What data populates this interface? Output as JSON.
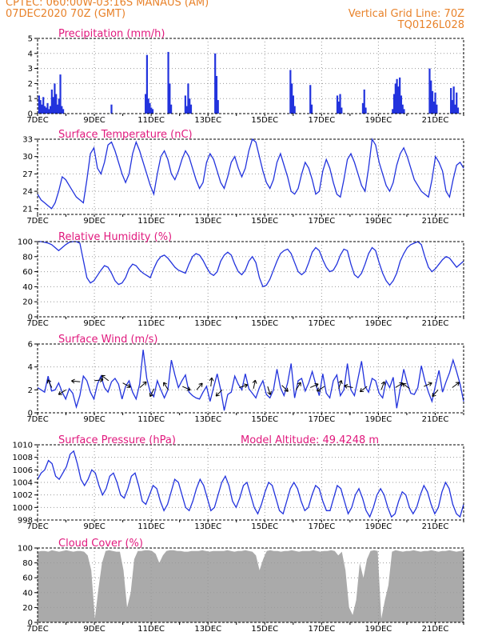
{
  "header": {
    "line1_left": "CPTEC:    060:00W-03:16S   MANAUS (AM)",
    "line2_left": "07DEC2020 70Z (GMT)",
    "line1_right": "Vertical Grid Line: 70Z",
    "line2_right": "TQ0126L028"
  },
  "colors": {
    "header": "#e8822a",
    "title": "#e0197d",
    "series": "#2233dd",
    "cloud": "#aaaaaa",
    "grid": "#999999"
  },
  "x_axis": {
    "labels": [
      "7DEC",
      "9DEC",
      "11DEC",
      "13DEC",
      "15DEC",
      "17DEC",
      "19DEC",
      "21DEC"
    ],
    "start_day": 7,
    "end_day": 22
  },
  "chart_data": [
    {
      "type": "bar",
      "title": "Precipitation (mm/h)",
      "ylim": [
        0,
        5
      ],
      "yticks": [
        0,
        1,
        2,
        3,
        4,
        5
      ],
      "bars": [
        [
          7.05,
          1.2
        ],
        [
          7.1,
          0.9
        ],
        [
          7.15,
          0.6
        ],
        [
          7.2,
          1.1
        ],
        [
          7.25,
          0.5
        ],
        [
          7.3,
          0.4
        ],
        [
          7.35,
          0.7
        ],
        [
          7.4,
          0.3
        ],
        [
          7.45,
          0.5
        ],
        [
          7.5,
          1.6
        ],
        [
          7.55,
          1.1
        ],
        [
          7.6,
          2.0
        ],
        [
          7.65,
          1.3
        ],
        [
          7.7,
          0.6
        ],
        [
          7.75,
          1.0
        ],
        [
          7.8,
          2.6
        ],
        [
          7.85,
          0.5
        ],
        [
          7.9,
          0.3
        ],
        [
          9.6,
          0.6
        ],
        [
          10.8,
          1.3
        ],
        [
          10.85,
          3.9
        ],
        [
          10.9,
          1.0
        ],
        [
          10.95,
          0.7
        ],
        [
          11.0,
          0.4
        ],
        [
          11.05,
          0.3
        ],
        [
          11.6,
          4.1
        ],
        [
          11.65,
          2.0
        ],
        [
          11.7,
          0.6
        ],
        [
          12.2,
          1.2
        ],
        [
          12.25,
          0.5
        ],
        [
          12.3,
          2.0
        ],
        [
          12.35,
          1.0
        ],
        [
          12.4,
          0.6
        ],
        [
          13.25,
          4.0
        ],
        [
          13.3,
          2.5
        ],
        [
          13.35,
          0.9
        ],
        [
          15.9,
          2.9
        ],
        [
          15.95,
          2.0
        ],
        [
          16.0,
          1.2
        ],
        [
          16.05,
          0.5
        ],
        [
          16.6,
          1.9
        ],
        [
          16.65,
          0.6
        ],
        [
          17.55,
          1.2
        ],
        [
          17.6,
          0.8
        ],
        [
          17.65,
          1.3
        ],
        [
          17.7,
          0.4
        ],
        [
          18.45,
          0.7
        ],
        [
          18.5,
          1.6
        ],
        [
          18.55,
          0.4
        ],
        [
          19.5,
          0.3
        ],
        [
          19.55,
          1.3
        ],
        [
          19.6,
          2.0
        ],
        [
          19.65,
          2.3
        ],
        [
          19.7,
          1.8
        ],
        [
          19.75,
          2.4
        ],
        [
          19.8,
          1.2
        ],
        [
          19.85,
          0.6
        ],
        [
          19.9,
          0.3
        ],
        [
          20.8,
          3.0
        ],
        [
          20.85,
          2.2
        ],
        [
          20.9,
          1.5
        ],
        [
          20.95,
          0.8
        ],
        [
          21.0,
          1.4
        ],
        [
          21.05,
          0.6
        ],
        [
          21.55,
          1.7
        ],
        [
          21.6,
          0.9
        ],
        [
          21.65,
          1.8
        ],
        [
          21.7,
          0.6
        ],
        [
          21.75,
          1.4
        ],
        [
          21.8,
          0.4
        ]
      ]
    },
    {
      "type": "line",
      "title": "Surface Temperature (nC)",
      "ylim": [
        20,
        33
      ],
      "yticks": [
        21,
        24,
        27,
        30,
        33
      ],
      "series": [
        {
          "values": [
            23.5,
            22.5,
            22.0,
            21.5,
            21.0,
            22.0,
            24.0,
            26.5,
            26.0,
            25.0,
            24.0,
            23.0,
            22.5,
            22.0,
            26.0,
            30.5,
            31.5,
            28.0,
            27.0,
            29.0,
            32.0,
            32.5,
            31.0,
            29.0,
            27.0,
            25.5,
            27.0,
            30.5,
            32.5,
            31.0,
            29.0,
            27.0,
            25.0,
            23.5,
            27.0,
            30.0,
            31.0,
            29.5,
            27.0,
            26.0,
            27.5,
            29.5,
            31.0,
            30.0,
            28.0,
            26.0,
            24.5,
            25.5,
            29.0,
            30.5,
            29.5,
            27.5,
            25.5,
            24.5,
            26.5,
            29.0,
            30.0,
            28.0,
            26.5,
            28.0,
            31.0,
            33.0,
            32.5,
            30.0,
            27.5,
            25.5,
            24.5,
            26.0,
            29.0,
            30.5,
            28.5,
            26.5,
            24.0,
            23.5,
            24.5,
            27.0,
            29.0,
            28.0,
            26.0,
            23.5,
            24.0,
            27.5,
            29.5,
            28.0,
            25.5,
            23.5,
            23.0,
            26.0,
            29.5,
            30.5,
            29.0,
            27.0,
            25.0,
            24.0,
            28.0,
            33.0,
            32.0,
            29.0,
            27.0,
            25.0,
            24.0,
            25.5,
            28.5,
            30.5,
            31.5,
            30.0,
            28.0,
            26.0,
            25.0,
            24.0,
            23.5,
            23.0,
            26.0,
            30.0,
            29.0,
            27.5,
            24.0,
            23.0,
            26.0,
            28.5,
            29.0,
            28.0
          ]
        }
      ]
    },
    {
      "type": "line",
      "title": "Relative Humidity (%)",
      "ylim": [
        0,
        100
      ],
      "yticks": [
        0,
        20,
        40,
        60,
        80,
        100
      ],
      "series": [
        {
          "values": [
            100,
            100,
            99,
            98,
            96,
            92,
            88,
            92,
            96,
            99,
            100,
            100,
            98,
            75,
            52,
            45,
            48,
            55,
            62,
            68,
            66,
            58,
            48,
            43,
            45,
            52,
            64,
            70,
            68,
            62,
            58,
            55,
            52,
            64,
            74,
            80,
            82,
            78,
            72,
            66,
            62,
            60,
            58,
            70,
            80,
            84,
            82,
            75,
            66,
            58,
            55,
            60,
            74,
            82,
            86,
            82,
            70,
            60,
            56,
            62,
            74,
            80,
            72,
            52,
            40,
            42,
            50,
            62,
            74,
            84,
            88,
            90,
            84,
            72,
            60,
            56,
            60,
            72,
            86,
            92,
            88,
            76,
            66,
            60,
            62,
            70,
            82,
            90,
            88,
            70,
            56,
            52,
            58,
            70,
            84,
            92,
            88,
            72,
            58,
            48,
            42,
            48,
            58,
            74,
            84,
            92,
            96,
            98,
            100,
            96,
            80,
            66,
            60,
            64,
            70,
            76,
            80,
            78,
            72,
            66,
            70,
            74
          ]
        }
      ]
    },
    {
      "type": "line",
      "title": "Surface Wind (m/s)",
      "ylim": [
        0,
        6
      ],
      "yticks": [
        0,
        2,
        4,
        6
      ],
      "series": [
        {
          "values": [
            2.2,
            2.0,
            1.8,
            3.2,
            1.9,
            2.0,
            2.6,
            1.8,
            1.2,
            2.1,
            1.7,
            0.5,
            1.5,
            3.2,
            2.8,
            1.8,
            1.2,
            2.5,
            3.2,
            2.2,
            1.8,
            2.7,
            3.0,
            2.5,
            1.2,
            2.3,
            2.8,
            1.8,
            1.2,
            2.5,
            5.5,
            3.0,
            1.8,
            1.4,
            2.8,
            2.0,
            1.3,
            2.0,
            4.6,
            3.3,
            2.2,
            2.8,
            3.3,
            1.8,
            1.5,
            1.3,
            1.2,
            1.8,
            2.3,
            1.0,
            2.2,
            3.4,
            2.0,
            0.2,
            1.6,
            1.8,
            3.2,
            2.5,
            2.0,
            3.4,
            2.1,
            1.7,
            1.3,
            2.2,
            2.8,
            1.6,
            1.3,
            2.0,
            3.8,
            2.2,
            1.5,
            2.6,
            4.3,
            1.3,
            2.8,
            3.0,
            1.9,
            2.6,
            3.6,
            2.5,
            1.5,
            3.4,
            1.7,
            1.3,
            2.8,
            3.3,
            1.5,
            2.0,
            4.3,
            2.0,
            1.5,
            3.0,
            4.5,
            2.3,
            1.8,
            3.0,
            2.8,
            1.7,
            1.3,
            2.8,
            2.2,
            3.1,
            0.4,
            2.1,
            3.8,
            2.6,
            1.7,
            1.6,
            2.2,
            4.1,
            2.8,
            1.8,
            1.0,
            2.4,
            3.7,
            1.8,
            2.7,
            3.5,
            4.6,
            3.6,
            2.5,
            1.0
          ]
        }
      ],
      "arrows": [
        [
          7.5,
          2.2,
          -0.4,
          0.8
        ],
        [
          8.0,
          2.0,
          -0.8,
          -0.5
        ],
        [
          8.5,
          2.7,
          -0.9,
          0.1
        ],
        [
          9.0,
          2.8,
          0.9,
          0.1
        ],
        [
          9.5,
          2.8,
          -0.8,
          0.6
        ],
        [
          10.0,
          2.6,
          0.9,
          -0.5
        ],
        [
          10.6,
          2.2,
          0.8,
          0.7
        ],
        [
          11.1,
          2.1,
          -0.4,
          -0.8
        ],
        [
          11.6,
          2.0,
          -0.5,
          0.8
        ],
        [
          12.1,
          2.3,
          0.9,
          -0.4
        ],
        [
          12.6,
          2.0,
          0.6,
          0.7
        ],
        [
          13.1,
          2.3,
          0.1,
          0.9
        ],
        [
          13.5,
          2.0,
          -0.6,
          -0.6
        ],
        [
          14.1,
          2.2,
          0.9,
          0.3
        ],
        [
          14.6,
          2.1,
          0.2,
          0.9
        ],
        [
          15.1,
          2.3,
          0.3,
          -0.9
        ],
        [
          15.6,
          2.4,
          0.7,
          -0.7
        ],
        [
          16.1,
          2.0,
          0.5,
          0.8
        ],
        [
          16.6,
          2.2,
          0.9,
          0.4
        ],
        [
          17.1,
          2.3,
          -0.8,
          -0.5
        ],
        [
          17.6,
          2.1,
          0.3,
          0.9
        ],
        [
          18.1,
          2.2,
          -0.9,
          0.2
        ],
        [
          18.6,
          2.3,
          -0.8,
          -0.6
        ],
        [
          19.1,
          2.0,
          0.3,
          0.8
        ],
        [
          19.6,
          2.2,
          0.8,
          0.5
        ],
        [
          20.1,
          2.1,
          -0.8,
          0.6
        ],
        [
          20.6,
          2.3,
          0.9,
          0.4
        ],
        [
          21.1,
          2.0,
          -0.6,
          -0.7
        ],
        [
          21.6,
          2.2,
          0.8,
          0.6
        ]
      ]
    },
    {
      "type": "line",
      "title": "Surface Pressure (hPa)",
      "annotation": "Model Altitude: 49.4248 m",
      "ylim": [
        998,
        1010
      ],
      "yticks": [
        998,
        1000,
        1002,
        1004,
        1006,
        1008,
        1010
      ],
      "series": [
        {
          "values": [
            1004.5,
            1005.5,
            1006.0,
            1007.5,
            1007.0,
            1005.0,
            1004.5,
            1005.5,
            1006.5,
            1008.5,
            1009.0,
            1007.0,
            1004.5,
            1003.5,
            1004.5,
            1006.0,
            1005.5,
            1003.5,
            1002.0,
            1003.0,
            1005.0,
            1005.5,
            1004.0,
            1002.0,
            1001.5,
            1003.0,
            1005.0,
            1005.5,
            1003.5,
            1001.0,
            1000.5,
            1002.0,
            1003.5,
            1003.0,
            1001.0,
            999.5,
            1000.5,
            1002.5,
            1004.5,
            1004.0,
            1002.0,
            1000.0,
            999.5,
            1001.0,
            1003.0,
            1004.5,
            1003.5,
            1001.5,
            999.5,
            1000.0,
            1002.0,
            1004.0,
            1005.0,
            1003.5,
            1001.0,
            1000.0,
            1001.5,
            1003.5,
            1004.0,
            1002.0,
            1000.0,
            999.0,
            1000.5,
            1002.5,
            1004.0,
            1003.5,
            1001.5,
            999.5,
            999.0,
            1001.0,
            1003.0,
            1004.0,
            1003.0,
            1001.0,
            999.5,
            1000.0,
            1002.0,
            1003.5,
            1003.0,
            1001.0,
            999.5,
            999.5,
            1001.5,
            1003.5,
            1003.0,
            1001.0,
            999.0,
            1000.0,
            1002.0,
            1003.0,
            1001.5,
            999.5,
            998.5,
            1000.0,
            1002.0,
            1003.0,
            1002.0,
            1000.0,
            998.5,
            999.0,
            1001.0,
            1002.5,
            1002.0,
            1000.0,
            999.0,
            1000.0,
            1002.0,
            1003.5,
            1002.5,
            1000.5,
            999.0,
            1000.0,
            1002.5,
            1004.0,
            1003.0,
            1000.5,
            999.0,
            998.5,
            1000.5
          ]
        }
      ]
    },
    {
      "type": "area",
      "title": "Cloud Cover (%)",
      "ylim": [
        0,
        100
      ],
      "yticks": [
        0,
        20,
        40,
        60,
        80,
        100
      ],
      "series": [
        {
          "values": [
            95,
            96,
            96,
            95,
            97,
            96,
            95,
            96,
            97,
            96,
            95,
            96,
            96,
            95,
            90,
            70,
            5,
            45,
            80,
            96,
            97,
            96,
            95,
            95,
            70,
            20,
            40,
            85,
            96,
            96,
            97,
            97,
            96,
            92,
            80,
            90,
            96,
            97,
            97,
            96,
            96,
            95,
            95,
            96,
            96,
            96,
            97,
            96,
            95,
            96,
            96,
            96,
            96,
            97,
            96,
            95,
            96,
            96,
            97,
            96,
            95,
            90,
            70,
            85,
            96,
            97,
            96,
            96,
            95,
            96,
            96,
            97,
            96,
            95,
            96,
            96,
            96,
            97,
            96,
            95,
            96,
            96,
            97,
            96,
            90,
            95,
            70,
            20,
            10,
            30,
            80,
            60,
            85,
            96,
            97,
            96,
            5,
            30,
            50,
            95,
            97,
            96,
            95,
            96,
            96,
            97,
            96,
            95,
            96,
            96,
            97,
            96,
            95,
            96,
            96,
            97,
            96,
            95,
            96,
            96
          ]
        }
      ]
    }
  ]
}
